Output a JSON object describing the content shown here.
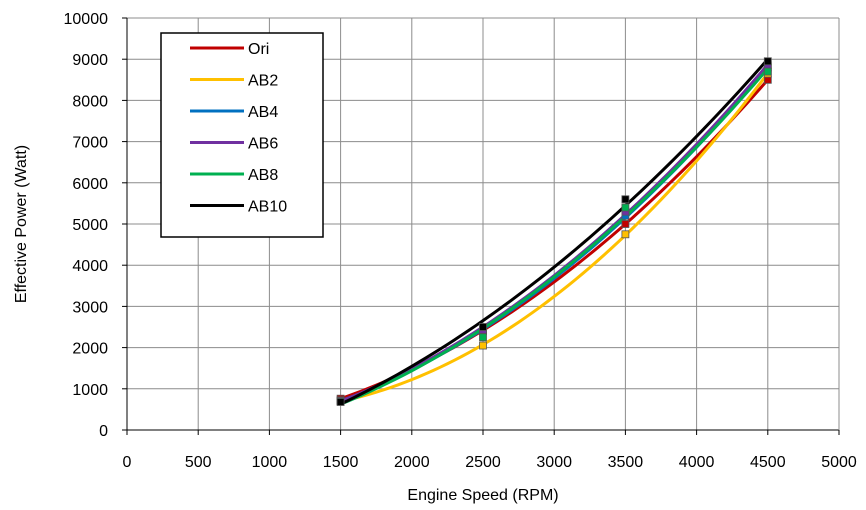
{
  "chart_data": {
    "type": "line",
    "title": "",
    "xlabel": "Engine Speed (RPM)",
    "ylabel": "Effective Power  (Watt)",
    "xlim": [
      0,
      5000
    ],
    "ylim": [
      0,
      10000
    ],
    "x_ticks": [
      "0",
      "500",
      "1000",
      "1500",
      "2000",
      "2500",
      "3000",
      "3500",
      "4000",
      "4500",
      "5000"
    ],
    "y_ticks": [
      "0",
      "1000",
      "2000",
      "3000",
      "4000",
      "5000",
      "6000",
      "7000",
      "8000",
      "9000",
      "10000"
    ],
    "grid": true,
    "legend_position": "top-left",
    "x": [
      1500,
      2500,
      3500,
      4500
    ],
    "series": [
      {
        "name": "Ori",
        "color": "#c00000",
        "values": [
          760,
          2420,
          5000,
          8500
        ]
      },
      {
        "name": "AB2",
        "color": "#ffc000",
        "values": [
          700,
          2050,
          4750,
          8650
        ]
      },
      {
        "name": "AB4",
        "color": "#0070c0",
        "values": [
          720,
          2400,
          5200,
          8800
        ]
      },
      {
        "name": "AB6",
        "color": "#7030a0",
        "values": [
          720,
          2430,
          5300,
          8850
        ]
      },
      {
        "name": "AB8",
        "color": "#00b050",
        "values": [
          700,
          2250,
          5400,
          8700
        ]
      },
      {
        "name": "AB10",
        "color": "#000000",
        "values": [
          680,
          2500,
          5600,
          8950
        ]
      }
    ]
  }
}
